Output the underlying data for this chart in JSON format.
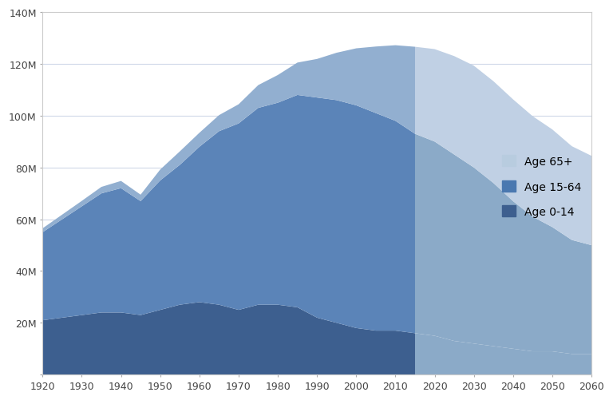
{
  "years": [
    1920,
    1925,
    1930,
    1935,
    1940,
    1945,
    1950,
    1955,
    1960,
    1965,
    1970,
    1975,
    1980,
    1985,
    1990,
    1995,
    2000,
    2005,
    2010,
    2015,
    2020,
    2025,
    2030,
    2035,
    2040,
    2045,
    2050,
    2055,
    2060
  ],
  "age_0_14": [
    21,
    22,
    23,
    24,
    24,
    23,
    25,
    27,
    28,
    27,
    25,
    27,
    27,
    26,
    22,
    20,
    18,
    17,
    17,
    16,
    15,
    13,
    12,
    11,
    10,
    9,
    9,
    8,
    8
  ],
  "age_15_64": [
    34,
    38,
    42,
    46,
    48,
    44,
    50,
    54,
    60,
    67,
    72,
    76,
    78,
    82,
    85,
    86,
    86,
    84,
    81,
    77,
    75,
    72,
    68,
    63,
    57,
    52,
    48,
    44,
    42
  ],
  "age_65plus": [
    1.5,
    1.8,
    2.1,
    2.5,
    2.8,
    2.5,
    4.2,
    5.2,
    5.4,
    6.2,
    7.4,
    8.8,
    10.7,
    12.5,
    14.9,
    18.3,
    22.0,
    25.7,
    29.2,
    33.6,
    35.7,
    38.0,
    39.3,
    39.3,
    39.3,
    38.8,
    37.7,
    36.2,
    34.5
  ],
  "projection_start_year": 2015,
  "c0_14_hist": "#3d5f8f",
  "c15_64_hist": "#5b84b8",
  "c65_hist": "#92afd0",
  "c0_14_proj": "#8baac8",
  "c15_64_proj": "#8baac8",
  "c65_proj": "#c0d0e4",
  "background_color": "#ffffff",
  "border_color": "#cccccc",
  "ylim": [
    0,
    140
  ],
  "yticks": [
    0,
    20,
    40,
    60,
    80,
    100,
    120,
    140
  ],
  "ytick_labels": [
    "",
    "20M",
    "40M",
    "60M",
    "80M",
    "100M",
    "120M",
    "140M"
  ],
  "xtick_years": [
    1920,
    1930,
    1940,
    1950,
    1960,
    1970,
    1980,
    1990,
    2000,
    2010,
    2020,
    2030,
    2040,
    2050,
    2060
  ],
  "grid_color": "#d0d8e8",
  "legend_color_65plus": "#b8ccdf",
  "legend_color_15_64": "#4a78b0",
  "legend_color_0_14": "#3d5f8f"
}
